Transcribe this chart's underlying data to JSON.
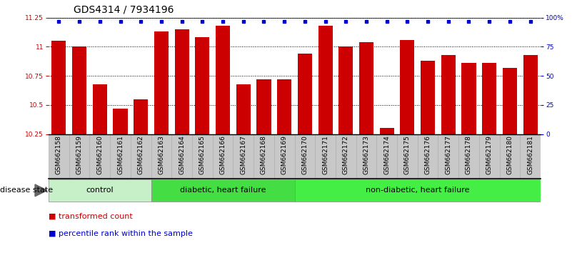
{
  "title": "GDS4314 / 7934196",
  "samples": [
    "GSM662158",
    "GSM662159",
    "GSM662160",
    "GSM662161",
    "GSM662162",
    "GSM662163",
    "GSM662164",
    "GSM662165",
    "GSM662166",
    "GSM662167",
    "GSM662168",
    "GSM662169",
    "GSM662170",
    "GSM662171",
    "GSM662172",
    "GSM662173",
    "GSM662174",
    "GSM662175",
    "GSM662176",
    "GSM662177",
    "GSM662178",
    "GSM662179",
    "GSM662180",
    "GSM662181"
  ],
  "bar_values": [
    11.05,
    11.0,
    10.68,
    10.47,
    10.55,
    11.13,
    11.15,
    11.08,
    11.18,
    10.68,
    10.72,
    10.72,
    10.94,
    11.18,
    11.0,
    11.04,
    10.3,
    11.06,
    10.88,
    10.93,
    10.86,
    10.86,
    10.82,
    10.93
  ],
  "groups": [
    {
      "label": "control",
      "start": 0,
      "end": 5,
      "color": "#c8f0c8"
    },
    {
      "label": "diabetic, heart failure",
      "start": 5,
      "end": 12,
      "color": "#44dd44"
    },
    {
      "label": "non-diabetic, heart failure",
      "start": 12,
      "end": 24,
      "color": "#44ee44"
    }
  ],
  "ymin": 10.25,
  "ymax": 11.25,
  "yticks": [
    10.25,
    10.5,
    10.75,
    11.0,
    11.25
  ],
  "ytick_labels": [
    "10.25",
    "10.5",
    "10.75",
    "11",
    "11.25"
  ],
  "right_yticks": [
    0,
    25,
    50,
    75,
    100
  ],
  "right_ytick_labels": [
    "0",
    "25",
    "50",
    "75",
    "100%"
  ],
  "bar_color": "#cc0000",
  "dot_color": "#0000cc",
  "bar_width": 0.7,
  "title_fontsize": 10,
  "tick_fontsize": 6.5,
  "group_label_fontsize": 8,
  "legend_fontsize": 8,
  "disease_state_label": "disease state",
  "legend_items": [
    {
      "color": "#cc0000",
      "label": "transformed count"
    },
    {
      "color": "#0000cc",
      "label": "percentile rank within the sample"
    }
  ],
  "bg_color": "#ffffff",
  "tick_bg_color": "#c8c8c8"
}
